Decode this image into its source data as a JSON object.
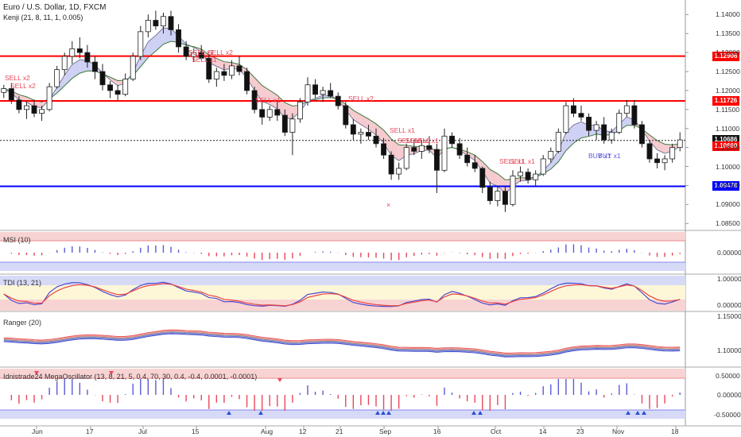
{
  "header": {
    "title": "Euro / U.S. Dollar, 1D, FXCM",
    "indicator": "Kenji (21, 8, 11, 1, 0.005)"
  },
  "colors": {
    "bull": "#3a3a3a",
    "bear": "#111111",
    "red_line": "#ff0000",
    "blue_line": "#0000ff",
    "sell": "#e8475a",
    "buy": "#5b5bd6",
    "ribbon_red": "#f4c2c8",
    "ribbon_blue": "#c5c9f2",
    "pane_red": "#f8d3d3",
    "pane_blue": "#d6daf7",
    "pane_yellow": "#fdf7d8"
  },
  "price_axis": {
    "labels": [
      "1.14000",
      "1.13500",
      "1.13000",
      "1.12500",
      "1.12000",
      "1.11500",
      "1.11000",
      "1.10500",
      "1.10000",
      "1.09500",
      "1.09000",
      "1.08500"
    ],
    "values": [
      1.14,
      1.135,
      1.13,
      1.125,
      1.12,
      1.115,
      1.11,
      1.105,
      1.1,
      1.095,
      1.09,
      1.085
    ]
  },
  "date_axis": [
    "Jun",
    "17",
    "Jul",
    "15",
    "Aug",
    "12",
    "21",
    "Sep",
    "16",
    "Oct",
    "14",
    "23",
    "Nov",
    "18"
  ],
  "levels": [
    {
      "value": 1.12906,
      "label": "1.12906",
      "color": "#ff0000"
    },
    {
      "value": 1.11726,
      "label": "1.11726",
      "color": "#ff0000"
    },
    {
      "value": 1.10686,
      "label": "1.10686",
      "color": "#222222"
    },
    {
      "value": 1.1066,
      "label": "1.10660",
      "color": "#ff0000"
    },
    {
      "value": 1.09478,
      "label": "1.09478",
      "color": "#0000ff"
    }
  ],
  "signals": [
    {
      "text": "SELL x2",
      "type": "sell"
    },
    {
      "text": "SELL x2",
      "type": "sell"
    },
    {
      "text": "SELL x1",
      "type": "sell"
    },
    {
      "text": "SELL x2",
      "type": "sell"
    },
    {
      "text": "SELL x1",
      "type": "sell"
    },
    {
      "text": "SELL x1",
      "type": "sell"
    },
    {
      "text": "SELL x2",
      "type": "sell"
    },
    {
      "text": "SELL x1",
      "type": "sell"
    },
    {
      "text": "SELL x1",
      "type": "sell"
    },
    {
      "text": "SELL x1",
      "type": "sell"
    },
    {
      "text": "SELL x1",
      "type": "sell"
    },
    {
      "text": "SELL x1",
      "type": "sell"
    },
    {
      "text": "SELL x1",
      "type": "sell"
    },
    {
      "text": "BUY x1",
      "type": "buy"
    },
    {
      "text": "BUY x1",
      "type": "buy"
    }
  ],
  "panes": {
    "msi": {
      "title": "MSI (10)",
      "labels": [
        "0.00000"
      ]
    },
    "tdi": {
      "title": "TDI (13, 21)",
      "labels": [
        "1.00000",
        "0.00000"
      ]
    },
    "ranger": {
      "title": "Ranger (20)",
      "labels": [
        "1.15000",
        "1.10000"
      ]
    },
    "mega": {
      "title": "Idnistrade24 MegaOscillator (13, 8, 21, 5, 0.4, 70, 30, 0.4, -0.4, 0.0001, -0.0001)",
      "labels": [
        "0.50000",
        "0.00000",
        "-0.50000"
      ]
    }
  },
  "chart_data": {
    "type": "candlestick",
    "title": "Euro / U.S. Dollar, 1D, FXCM",
    "ylim": [
      1.084,
      1.143
    ],
    "ohlc": [
      [
        1.1195,
        1.1215,
        1.118,
        1.1205
      ],
      [
        1.1205,
        1.122,
        1.1165,
        1.1175
      ],
      [
        1.1175,
        1.1185,
        1.114,
        1.115
      ],
      [
        1.115,
        1.117,
        1.1125,
        1.116
      ],
      [
        1.116,
        1.1175,
        1.113,
        1.114
      ],
      [
        1.114,
        1.116,
        1.112,
        1.115
      ],
      [
        1.115,
        1.122,
        1.1145,
        1.121
      ],
      [
        1.121,
        1.1265,
        1.1205,
        1.1255
      ],
      [
        1.1255,
        1.13,
        1.124,
        1.129
      ],
      [
        1.129,
        1.133,
        1.127,
        1.131
      ],
      [
        1.131,
        1.134,
        1.1285,
        1.13
      ],
      [
        1.13,
        1.132,
        1.126,
        1.1275
      ],
      [
        1.1275,
        1.129,
        1.123,
        1.125
      ],
      [
        1.125,
        1.127,
        1.12,
        1.1215
      ],
      [
        1.1215,
        1.1225,
        1.118,
        1.12
      ],
      [
        1.12,
        1.1215,
        1.1175,
        1.119
      ],
      [
        1.119,
        1.1245,
        1.1185,
        1.123
      ],
      [
        1.123,
        1.13,
        1.1225,
        1.129
      ],
      [
        1.129,
        1.137,
        1.128,
        1.1355
      ],
      [
        1.1355,
        1.14,
        1.134,
        1.1385
      ],
      [
        1.1385,
        1.141,
        1.136,
        1.137
      ],
      [
        1.137,
        1.1405,
        1.135,
        1.1395
      ],
      [
        1.1395,
        1.141,
        1.1345,
        1.136
      ],
      [
        1.136,
        1.1375,
        1.13,
        1.1315
      ],
      [
        1.1315,
        1.133,
        1.128,
        1.129
      ],
      [
        1.129,
        1.131,
        1.1275,
        1.13
      ],
      [
        1.13,
        1.132,
        1.128,
        1.1285
      ],
      [
        1.1285,
        1.1295,
        1.122,
        1.123
      ],
      [
        1.123,
        1.126,
        1.121,
        1.125
      ],
      [
        1.125,
        1.127,
        1.1225,
        1.124
      ],
      [
        1.124,
        1.128,
        1.123,
        1.1265
      ],
      [
        1.1265,
        1.129,
        1.124,
        1.125
      ],
      [
        1.125,
        1.126,
        1.119,
        1.12
      ],
      [
        1.12,
        1.121,
        1.114,
        1.115
      ],
      [
        1.115,
        1.117,
        1.111,
        1.113
      ],
      [
        1.113,
        1.116,
        1.112,
        1.115
      ],
      [
        1.115,
        1.117,
        1.112,
        1.1135
      ],
      [
        1.1135,
        1.115,
        1.108,
        1.109
      ],
      [
        1.109,
        1.114,
        1.103,
        1.1125
      ],
      [
        1.1125,
        1.118,
        1.1115,
        1.117
      ],
      [
        1.117,
        1.1235,
        1.116,
        1.1215
      ],
      [
        1.1215,
        1.123,
        1.118,
        1.119
      ],
      [
        1.119,
        1.121,
        1.117,
        1.12
      ],
      [
        1.12,
        1.122,
        1.118,
        1.1185
      ],
      [
        1.1185,
        1.1195,
        1.115,
        1.116
      ],
      [
        1.116,
        1.117,
        1.11,
        1.111
      ],
      [
        1.111,
        1.1125,
        1.107,
        1.1085
      ],
      [
        1.1085,
        1.11,
        1.106,
        1.109
      ],
      [
        1.109,
        1.111,
        1.107,
        1.108
      ],
      [
        1.108,
        1.11,
        1.105,
        1.106
      ],
      [
        1.106,
        1.1075,
        1.102,
        1.103
      ],
      [
        1.103,
        1.104,
        1.0965,
        1.098
      ],
      [
        1.098,
        1.101,
        1.0965,
        1.0995
      ],
      [
        1.0995,
        1.106,
        1.099,
        1.105
      ],
      [
        1.105,
        1.107,
        1.103,
        1.104
      ],
      [
        1.104,
        1.107,
        1.102,
        1.1055
      ],
      [
        1.1055,
        1.108,
        1.1035,
        1.1045
      ],
      [
        1.1045,
        1.106,
        1.093,
        1.099
      ],
      [
        1.099,
        1.11,
        1.0985,
        1.108
      ],
      [
        1.108,
        1.109,
        1.105,
        1.106
      ],
      [
        1.106,
        1.1075,
        1.102,
        1.103
      ],
      [
        1.103,
        1.105,
        1.1,
        1.101
      ],
      [
        1.101,
        1.103,
        1.0985,
        1.0995
      ],
      [
        1.0995,
        1.1,
        1.093,
        1.0945
      ],
      [
        1.0945,
        1.096,
        1.09,
        1.091
      ],
      [
        1.091,
        1.095,
        1.0895,
        1.0935
      ],
      [
        1.0935,
        1.095,
        1.088,
        1.09
      ],
      [
        1.09,
        1.099,
        1.0895,
        1.0975
      ],
      [
        1.0975,
        1.1,
        1.096,
        1.0985
      ],
      [
        1.0985,
        1.0995,
        1.0955,
        1.0965
      ],
      [
        1.0965,
        1.099,
        1.095,
        1.098
      ],
      [
        1.098,
        1.103,
        1.0975,
        1.102
      ],
      [
        1.102,
        1.105,
        1.101,
        1.104
      ],
      [
        1.104,
        1.11,
        1.1035,
        1.109
      ],
      [
        1.109,
        1.117,
        1.1085,
        1.116
      ],
      [
        1.116,
        1.118,
        1.113,
        1.114
      ],
      [
        1.114,
        1.116,
        1.112,
        1.113
      ],
      [
        1.113,
        1.114,
        1.108,
        1.1095
      ],
      [
        1.1095,
        1.112,
        1.107,
        1.111
      ],
      [
        1.111,
        1.113,
        1.106,
        1.107
      ],
      [
        1.107,
        1.11,
        1.106,
        1.109
      ],
      [
        1.109,
        1.115,
        1.1085,
        1.114
      ],
      [
        1.114,
        1.1175,
        1.113,
        1.116
      ],
      [
        1.116,
        1.1175,
        1.11,
        1.111
      ],
      [
        1.111,
        1.112,
        1.105,
        1.106
      ],
      [
        1.106,
        1.107,
        1.101,
        1.102
      ],
      [
        1.102,
        1.1035,
        1.0995,
        1.101
      ],
      [
        1.101,
        1.103,
        1.099,
        1.102
      ],
      [
        1.102,
        1.106,
        1.101,
        1.105
      ],
      [
        1.105,
        1.109,
        1.104,
        1.107
      ]
    ],
    "level_lines": [
      1.12906,
      1.11726,
      1.10686,
      1.09478
    ]
  }
}
